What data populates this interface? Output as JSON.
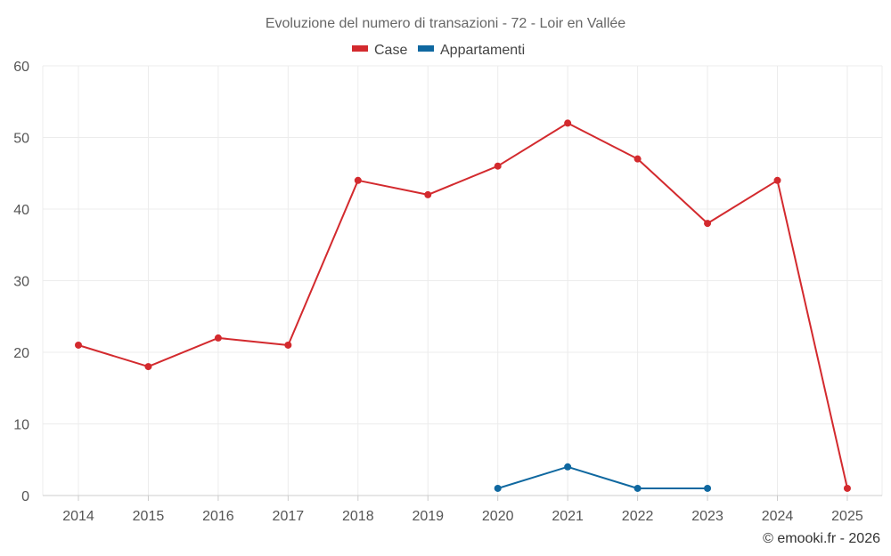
{
  "chart_data": {
    "type": "line",
    "title": "Evoluzione del numero di transazioni - 72 - Loir en Vallée",
    "xlabel": "",
    "ylabel": "",
    "categories": [
      "2014",
      "2015",
      "2016",
      "2017",
      "2018",
      "2019",
      "2020",
      "2021",
      "2022",
      "2023",
      "2024",
      "2025"
    ],
    "series": [
      {
        "name": "Case",
        "color": "#d32a2e",
        "values": [
          21,
          18,
          22,
          21,
          44,
          42,
          46,
          52,
          47,
          38,
          44,
          1
        ]
      },
      {
        "name": "Appartamenti",
        "color": "#0f68a0",
        "values": [
          null,
          null,
          null,
          null,
          null,
          null,
          1,
          4,
          1,
          1,
          null,
          null
        ]
      }
    ],
    "ylim": [
      0,
      60
    ],
    "yticks": [
      0,
      10,
      20,
      30,
      40,
      50,
      60
    ],
    "grid": true,
    "legend_position": "top-center"
  },
  "credit": "© emooki.fr - 2026"
}
